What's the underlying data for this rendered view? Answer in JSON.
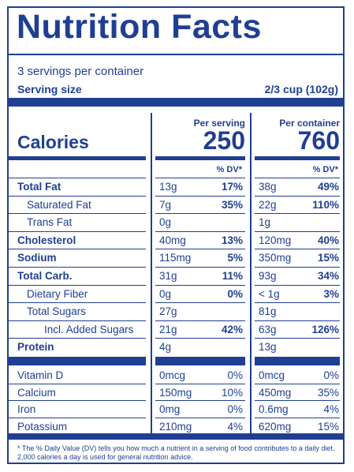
{
  "title": "Nutrition Facts",
  "servings": "3 servings per container",
  "serving_size_label": "Serving size",
  "serving_size_value": "2/3 cup (102g)",
  "per_serving_label": "Per serving",
  "per_container_label": "Per container",
  "calories_label": "Calories",
  "calories_serving": "250",
  "calories_container": "760",
  "dv_header": "% DV*",
  "nutrients": [
    {
      "label": "Total Fat",
      "bold": true,
      "indent": 0,
      "s_amt": "13g",
      "s_pct": "17%",
      "c_amt": "38g",
      "c_pct": "49%"
    },
    {
      "label": "Saturated Fat",
      "bold": false,
      "indent": 1,
      "s_amt": "7g",
      "s_pct": "35%",
      "c_amt": "22g",
      "c_pct": "110%"
    },
    {
      "label": "Trans Fat",
      "bold": false,
      "indent": 1,
      "s_amt": "0g",
      "s_pct": "",
      "c_amt": "1g",
      "c_pct": ""
    },
    {
      "label": "Cholesterol",
      "bold": true,
      "indent": 0,
      "s_amt": "40mg",
      "s_pct": "13%",
      "c_amt": "120mg",
      "c_pct": "40%"
    },
    {
      "label": "Sodium",
      "bold": true,
      "indent": 0,
      "s_amt": "115mg",
      "s_pct": "5%",
      "c_amt": "350mg",
      "c_pct": "15%"
    },
    {
      "label": "Total Carb.",
      "bold": true,
      "indent": 0,
      "s_amt": "31g",
      "s_pct": "11%",
      "c_amt": "93g",
      "c_pct": "34%"
    },
    {
      "label": "Dietary Fiber",
      "bold": false,
      "indent": 1,
      "s_amt": "0g",
      "s_pct": "0%",
      "c_amt": "< 1g",
      "c_pct": "3%"
    },
    {
      "label": "Total Sugars",
      "bold": false,
      "indent": 1,
      "s_amt": "27g",
      "s_pct": "",
      "c_amt": "81g",
      "c_pct": ""
    },
    {
      "label": "Incl. Added Sugars",
      "bold": false,
      "indent": 2,
      "s_amt": "21g",
      "s_pct": "42%",
      "c_amt": "63g",
      "c_pct": "126%"
    },
    {
      "label": "Protein",
      "bold": true,
      "indent": 0,
      "s_amt": "4g",
      "s_pct": "",
      "c_amt": "13g",
      "c_pct": ""
    }
  ],
  "vitamins": [
    {
      "label": "Vitamin D",
      "s_amt": "0mcg",
      "s_pct": "0%",
      "c_amt": "0mcg",
      "c_pct": "0%"
    },
    {
      "label": "Calcium",
      "s_amt": "150mg",
      "s_pct": "10%",
      "c_amt": "450mg",
      "c_pct": "35%"
    },
    {
      "label": "Iron",
      "s_amt": "0mg",
      "s_pct": "0%",
      "c_amt": "0.6mg",
      "c_pct": "4%"
    },
    {
      "label": "Potassium",
      "s_amt": "210mg",
      "s_pct": "4%",
      "c_amt": "620mg",
      "c_pct": "15%"
    }
  ],
  "footnote": "* The % Daily Value (DV) tells you how much a nutrient in a serving of food contributes to a daily diet. 2,000 calories a day is used for general nutrition advice.",
  "colors": {
    "ink": "#1f3f92",
    "background": "#ffffff"
  }
}
